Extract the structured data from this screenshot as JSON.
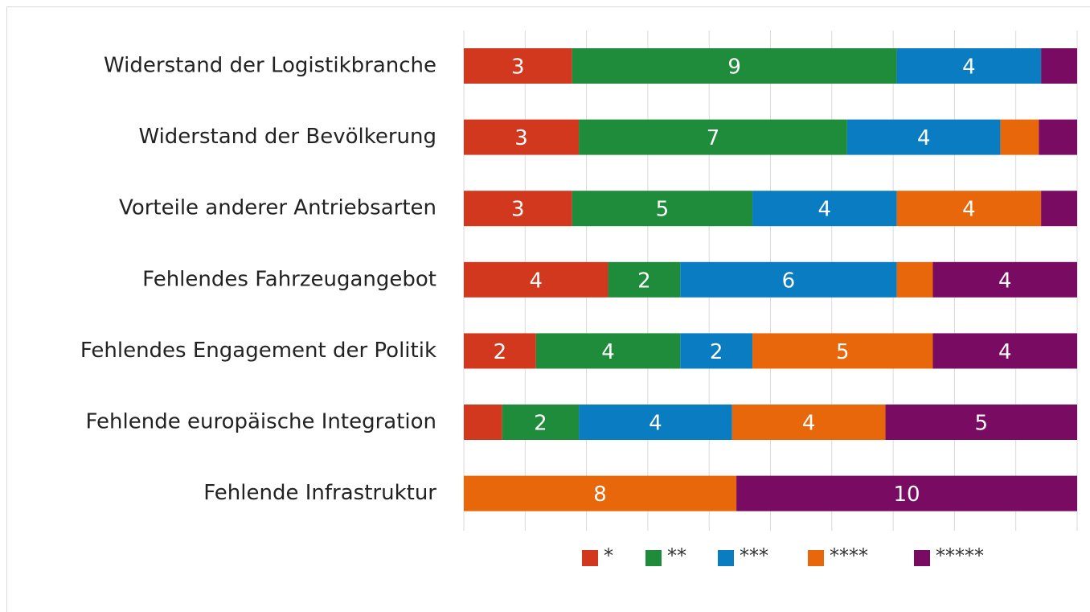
{
  "chart_data": {
    "type": "stacked-bar-100",
    "categories": [
      "Widerstand der Logistikbranche",
      "Widerstand der Bevölkerung",
      "Vorteile anderer Antriebsarten",
      "Fehlendes Fahrzeugangebot",
      "Fehlendes Engagement der Politik",
      "Fehlende europäische Integration",
      "Fehlende Infrastruktur"
    ],
    "series": [
      {
        "name": "*",
        "color": "#d1381e",
        "values": [
          3,
          3,
          3,
          4,
          2,
          1,
          0
        ]
      },
      {
        "name": "**",
        "color": "#1e8c3a",
        "values": [
          9,
          7,
          5,
          2,
          4,
          2,
          0
        ]
      },
      {
        "name": "***",
        "color": "#0a7cc1",
        "values": [
          4,
          4,
          4,
          6,
          2,
          4,
          0
        ]
      },
      {
        "name": "****",
        "color": "#e8670a",
        "values": [
          0,
          1,
          4,
          1,
          5,
          4,
          8
        ]
      },
      {
        "name": "*****",
        "color": "#7a0b62",
        "values": [
          1,
          1,
          1,
          4,
          4,
          5,
          10
        ]
      }
    ],
    "xlim": [
      0,
      100
    ],
    "xticks": [
      0,
      10,
      20,
      30,
      40,
      50,
      60,
      70,
      80,
      90,
      100
    ],
    "grid": true,
    "legend": "bottom"
  }
}
